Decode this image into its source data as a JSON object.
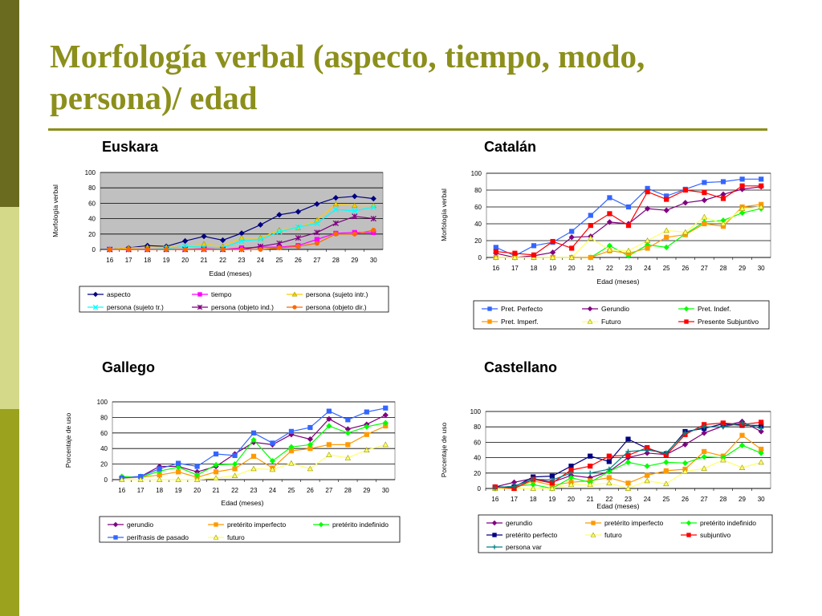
{
  "slide": {
    "title": "Morfología verbal (aspecto, tiempo, modo, persona)/ edad"
  },
  "chart_data": [
    {
      "type": "line",
      "title": "Euskara",
      "xlabel": "Edad (meses)",
      "ylabel": "Morfología verbal",
      "ylim": [
        0,
        100
      ],
      "yticks": [
        0,
        20,
        40,
        60,
        80,
        100
      ],
      "grid": true,
      "plot_background": "#c0c0c0",
      "legend_position": "bottom",
      "categories": [
        "16",
        "17",
        "18",
        "19",
        "20",
        "21",
        "22",
        "23",
        "24",
        "25",
        "26",
        "27",
        "28",
        "29",
        "30"
      ],
      "series": [
        {
          "name": "aspecto",
          "color": "#000080",
          "marker": "diamond",
          "values": [
            0,
            2,
            5,
            4,
            11,
            17,
            12,
            21,
            32,
            45,
            49,
            59,
            67,
            69,
            66
          ]
        },
        {
          "name": "tiempo",
          "color": "#ff00ff",
          "marker": "square",
          "values": [
            0,
            0,
            0,
            0,
            0,
            1,
            0,
            2,
            3,
            3,
            5,
            13,
            21,
            22,
            22
          ]
        },
        {
          "name": "persona (sujeto intr.)",
          "color": "#ffcc00",
          "marker": "triangle",
          "values": [
            0,
            2,
            3,
            3,
            3,
            7,
            4,
            15,
            15,
            25,
            28,
            38,
            59,
            57,
            57
          ]
        },
        {
          "name": "persona (sujeto tr.)",
          "color": "#00ffff",
          "marker": "x",
          "values": [
            0,
            0,
            0,
            1,
            4,
            3,
            2,
            11,
            13,
            23,
            29,
            34,
            52,
            50,
            55
          ]
        },
        {
          "name": "persona (objeto ind.)",
          "color": "#800080",
          "marker": "star",
          "values": [
            0,
            0,
            0,
            0,
            0,
            0,
            0,
            0,
            4,
            8,
            15,
            22,
            34,
            43,
            40
          ]
        },
        {
          "name": "persona (objeto dir.)",
          "color": "#ff6600",
          "marker": "circle",
          "values": [
            0,
            0,
            0,
            0,
            0,
            0,
            0,
            0,
            0,
            2,
            4,
            8,
            20,
            20,
            25
          ]
        }
      ]
    },
    {
      "type": "line",
      "title": "Catalán",
      "xlabel": "Edad (meses)",
      "ylabel": "Morfología verbal",
      "ylim": [
        0,
        100
      ],
      "yticks": [
        0,
        20,
        40,
        60,
        80,
        100
      ],
      "grid": true,
      "plot_background": "#ffffff",
      "legend_position": "bottom",
      "categories": [
        "16",
        "17",
        "18",
        "19",
        "20",
        "21",
        "22",
        "23",
        "24",
        "25",
        "26",
        "27",
        "28",
        "29",
        "30"
      ],
      "series": [
        {
          "name": "Pret. Perfecto",
          "color": "#3366ff",
          "marker": "square",
          "values": [
            12,
            2,
            14,
            18,
            31,
            50,
            71,
            60,
            82,
            73,
            81,
            89,
            90,
            93,
            93
          ]
        },
        {
          "name": "Gerundio",
          "color": "#800080",
          "marker": "diamond",
          "values": [
            5,
            0,
            2,
            6,
            24,
            25,
            42,
            40,
            58,
            56,
            65,
            68,
            75,
            81,
            84
          ]
        },
        {
          "name": "Pret. Indef.",
          "color": "#00ff00",
          "marker": "diamond",
          "values": [
            0,
            0,
            0,
            0,
            0,
            0,
            14,
            2,
            15,
            12,
            28,
            42,
            44,
            53,
            58
          ]
        },
        {
          "name": "Pret. Imperf.",
          "color": "#ff9900",
          "marker": "square",
          "values": [
            0,
            0,
            0,
            0,
            0,
            0,
            8,
            5,
            11,
            24,
            27,
            40,
            37,
            60,
            63
          ]
        },
        {
          "name": "Futuro",
          "color": "#ffff66",
          "marker": "triangle",
          "values": [
            0,
            0,
            0,
            0,
            0,
            23,
            9,
            8,
            20,
            32,
            30,
            48,
            40,
            58,
            60
          ]
        },
        {
          "name": "Presente Subjuntivo",
          "color": "#ff0000",
          "marker": "square",
          "values": [
            7,
            5,
            3,
            19,
            11,
            38,
            52,
            38,
            78,
            69,
            80,
            77,
            70,
            85,
            85
          ]
        }
      ]
    },
    {
      "type": "line",
      "title": "Gallego",
      "xlabel": "Edad (meses)",
      "ylabel": "Porcentaje de uso",
      "ylim": [
        0,
        100
      ],
      "yticks": [
        0,
        20,
        40,
        60,
        80,
        100
      ],
      "grid": true,
      "plot_background": "#ffffff",
      "legend_position": "bottom",
      "categories": [
        "16",
        "17",
        "18",
        "19",
        "20",
        "21",
        "22",
        "23",
        "24",
        "25",
        "26",
        "27",
        "28",
        "29",
        "30"
      ],
      "series": [
        {
          "name": "gerundio",
          "color": "#800080",
          "marker": "diamond",
          "values": [
            3,
            4,
            17,
            17,
            10,
            17,
            33,
            48,
            45,
            58,
            52,
            78,
            65,
            71,
            83
          ]
        },
        {
          "name": "pretérito imperfecto",
          "color": "#ff9900",
          "marker": "square",
          "values": [
            2,
            3,
            6,
            10,
            3,
            10,
            14,
            30,
            15,
            37,
            40,
            45,
            45,
            58,
            69
          ]
        },
        {
          "name": "pretérito indefinido",
          "color": "#00ff00",
          "marker": "diamond",
          "values": [
            4,
            3,
            11,
            16,
            6,
            19,
            20,
            51,
            24,
            42,
            45,
            69,
            60,
            68,
            73
          ]
        },
        {
          "name": "perífrasis de pasado",
          "color": "#3366ff",
          "marker": "square",
          "values": [
            2,
            4,
            14,
            21,
            17,
            33,
            31,
            60,
            47,
            62,
            67,
            88,
            77,
            87,
            92
          ]
        },
        {
          "name": "futuro",
          "color": "#ffff66",
          "marker": "triangle",
          "values": [
            0,
            0,
            0,
            0,
            0,
            2,
            5,
            14,
            13,
            21,
            14,
            32,
            28,
            38,
            45
          ]
        }
      ]
    },
    {
      "type": "line",
      "title": "Castellano",
      "xlabel": "Edad (meses)",
      "ylabel": "Porcentaje de uso",
      "ylim": [
        0,
        100
      ],
      "yticks": [
        0,
        20,
        40,
        60,
        80,
        100
      ],
      "grid": true,
      "plot_background": "#ffffff",
      "legend_position": "bottom",
      "categories": [
        "16",
        "17",
        "18",
        "19",
        "20",
        "21",
        "22",
        "23",
        "24",
        "25",
        "26",
        "27",
        "28",
        "29",
        "30"
      ],
      "series": [
        {
          "name": "gerundio",
          "color": "#800080",
          "marker": "diamond",
          "values": [
            2,
            8,
            13,
            8,
            17,
            14,
            22,
            40,
            46,
            44,
            57,
            72,
            81,
            87,
            74
          ]
        },
        {
          "name": "pretérito imperfecto",
          "color": "#ff9900",
          "marker": "square",
          "values": [
            0,
            0,
            10,
            4,
            8,
            10,
            14,
            7,
            17,
            23,
            25,
            48,
            42,
            69,
            51
          ]
        },
        {
          "name": "pretérito indefinido",
          "color": "#00ff00",
          "marker": "diamond",
          "values": [
            0,
            3,
            5,
            0,
            14,
            8,
            22,
            34,
            29,
            34,
            33,
            41,
            40,
            56,
            46
          ]
        },
        {
          "name": "pretérito perfecto",
          "color": "#000080",
          "marker": "square",
          "values": [
            2,
            2,
            15,
            16,
            29,
            42,
            35,
            64,
            52,
            45,
            74,
            78,
            84,
            82,
            82
          ]
        },
        {
          "name": "futuro",
          "color": "#ffff66",
          "marker": "triangle",
          "values": [
            0,
            0,
            0,
            0,
            5,
            5,
            7,
            0,
            10,
            6,
            22,
            26,
            37,
            27,
            34
          ]
        },
        {
          "name": "subjuntivo",
          "color": "#ff0000",
          "marker": "square",
          "values": [
            2,
            0,
            12,
            7,
            24,
            29,
            42,
            43,
            53,
            43,
            70,
            83,
            85,
            83,
            86
          ]
        },
        {
          "name": "persona var",
          "color": "#008080",
          "marker": "plus",
          "values": [
            1,
            3,
            12,
            11,
            20,
            20,
            25,
            48,
            50,
            46,
            72,
            80,
            80,
            85,
            78
          ]
        }
      ]
    }
  ]
}
